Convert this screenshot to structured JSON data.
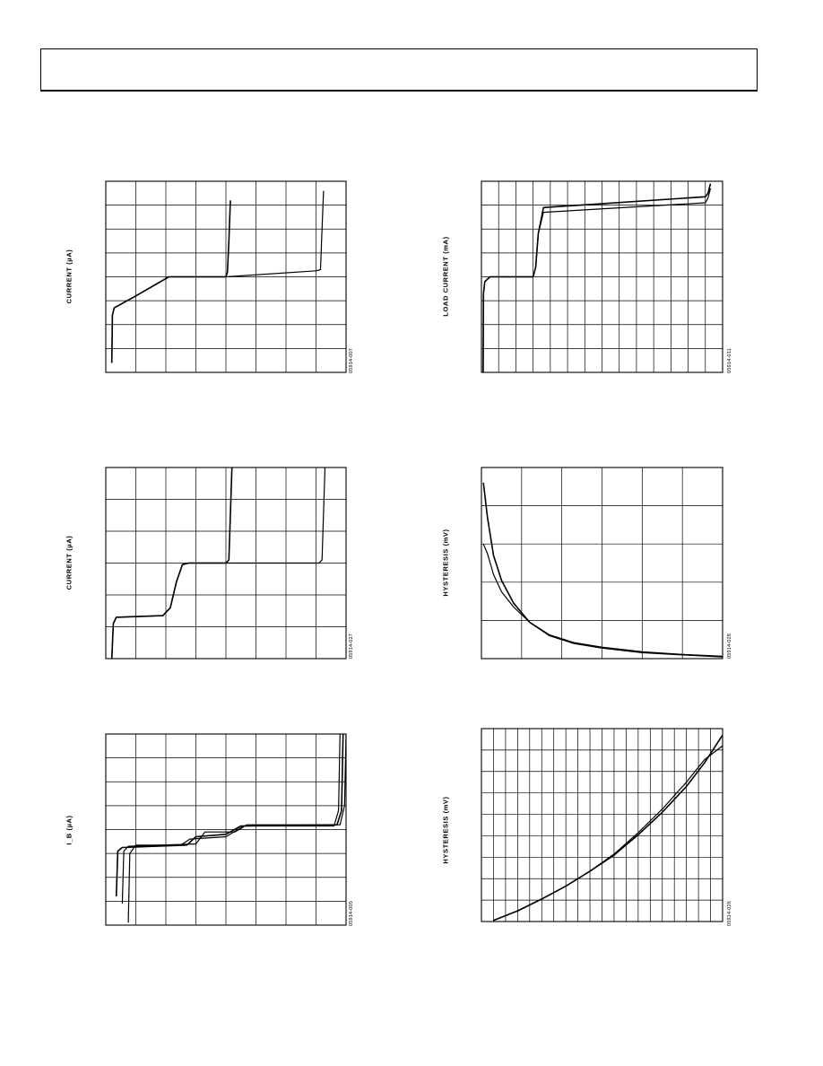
{
  "page": {
    "header_text": ""
  },
  "charts": [
    {
      "id": "tl",
      "figure_id": "05914-007",
      "chart_data": {
        "type": "line",
        "title": "",
        "xlabel": "",
        "ylabel": "CURRENT (µA)",
        "xlim": [
          0,
          8
        ],
        "ylim": [
          0,
          8
        ],
        "grid": {
          "x_divisions": 8,
          "y_divisions": 8
        },
        "series": [
          {
            "points": [
              [
                0.2,
                0.4
              ],
              [
                0.22,
                2.4
              ],
              [
                0.28,
                2.7
              ],
              [
                1.0,
                3.2
              ],
              [
                2.1,
                4.0
              ],
              [
                4.0,
                4.0
              ],
              [
                4.05,
                4.2
              ],
              [
                4.1,
                5.5
              ],
              [
                4.15,
                7.2
              ]
            ]
          },
          {
            "points": [
              [
                0.2,
                0.4
              ],
              [
                0.22,
                2.4
              ],
              [
                0.28,
                2.7
              ],
              [
                1.0,
                3.2
              ],
              [
                2.1,
                4.0
              ],
              [
                4.0,
                4.0
              ],
              [
                7.0,
                4.25
              ],
              [
                7.15,
                4.3
              ],
              [
                7.2,
                6.0
              ],
              [
                7.25,
                7.6
              ]
            ]
          }
        ]
      }
    },
    {
      "id": "tr",
      "figure_id": "05914-011",
      "chart_data": {
        "type": "line",
        "title": "",
        "xlabel": "",
        "ylabel": "LOAD CURRENT (mA)",
        "xlim": [
          0,
          14
        ],
        "ylim": [
          0,
          8
        ],
        "grid": {
          "x_divisions": 14,
          "y_divisions": 8
        },
        "series": [
          {
            "points": [
              [
                0.1,
                0
              ],
              [
                0.12,
                3.3
              ],
              [
                0.2,
                3.8
              ],
              [
                0.5,
                4.0
              ],
              [
                3.0,
                4.0
              ],
              [
                3.15,
                4.4
              ],
              [
                3.3,
                5.8
              ],
              [
                3.6,
                6.9
              ],
              [
                13.0,
                7.35
              ],
              [
                13.15,
                7.5
              ],
              [
                13.3,
                7.9
              ]
            ]
          },
          {
            "points": [
              [
                0.1,
                0
              ],
              [
                0.12,
                3.3
              ],
              [
                0.2,
                3.8
              ],
              [
                0.5,
                4.0
              ],
              [
                3.0,
                4.0
              ],
              [
                3.15,
                4.4
              ],
              [
                3.3,
                5.8
              ],
              [
                3.6,
                6.7
              ],
              [
                13.0,
                7.1
              ],
              [
                13.15,
                7.3
              ],
              [
                13.3,
                7.7
              ]
            ]
          }
        ]
      }
    },
    {
      "id": "ml",
      "figure_id": "05914-027",
      "chart_data": {
        "type": "line",
        "title": "",
        "xlabel": "",
        "ylabel": "CURRENT (µA)",
        "xlim": [
          0,
          8
        ],
        "ylim": [
          0,
          6
        ],
        "grid": {
          "x_divisions": 8,
          "y_divisions": 6
        },
        "series": [
          {
            "points": [
              [
                0.2,
                0
              ],
              [
                0.25,
                1.1
              ],
              [
                0.35,
                1.3
              ],
              [
                1.9,
                1.35
              ],
              [
                2.15,
                1.6
              ],
              [
                2.35,
                2.4
              ],
              [
                2.55,
                2.95
              ],
              [
                2.75,
                3.0
              ],
              [
                4.0,
                3.0
              ],
              [
                4.1,
                3.1
              ],
              [
                4.2,
                6.0
              ]
            ]
          },
          {
            "points": [
              [
                0.2,
                0
              ],
              [
                0.25,
                1.1
              ],
              [
                0.35,
                1.3
              ],
              [
                1.9,
                1.35
              ],
              [
                2.15,
                1.6
              ],
              [
                2.35,
                2.4
              ],
              [
                2.55,
                2.95
              ],
              [
                2.75,
                3.0
              ],
              [
                7.1,
                3.0
              ],
              [
                7.2,
                3.1
              ],
              [
                7.3,
                6.0
              ]
            ]
          }
        ]
      }
    },
    {
      "id": "mr",
      "figure_id": "05914-028",
      "chart_data": {
        "type": "line",
        "title": "",
        "xlabel": "",
        "ylabel": "HYSTERESIS (mV)",
        "xlim": [
          0,
          6
        ],
        "ylim": [
          0,
          5
        ],
        "grid": {
          "x_divisions": 6,
          "y_divisions": 5
        },
        "series": [
          {
            "points": [
              [
                0.05,
                4.6
              ],
              [
                0.15,
                3.7
              ],
              [
                0.3,
                2.7
              ],
              [
                0.5,
                2.05
              ],
              [
                0.8,
                1.45
              ],
              [
                1.2,
                0.95
              ],
              [
                1.7,
                0.6
              ],
              [
                2.3,
                0.4
              ],
              [
                3.0,
                0.28
              ],
              [
                4.0,
                0.16
              ],
              [
                5.0,
                0.1
              ],
              [
                6.0,
                0.05
              ]
            ]
          },
          {
            "points": [
              [
                0.05,
                3.0
              ],
              [
                0.15,
                2.75
              ],
              [
                0.3,
                2.2
              ],
              [
                0.5,
                1.75
              ],
              [
                0.8,
                1.35
              ],
              [
                1.2,
                0.95
              ],
              [
                1.7,
                0.62
              ],
              [
                2.3,
                0.42
              ],
              [
                3.0,
                0.3
              ],
              [
                4.0,
                0.18
              ],
              [
                5.0,
                0.11
              ],
              [
                6.0,
                0.06
              ]
            ]
          }
        ]
      }
    },
    {
      "id": "bl",
      "figure_id": "05914-005",
      "chart_data": {
        "type": "line",
        "title": "",
        "xlabel": "",
        "ylabel": "I_B (µA)",
        "xlim": [
          0,
          8
        ],
        "ylim": [
          0,
          8
        ],
        "grid": {
          "x_divisions": 8,
          "y_divisions": 8
        },
        "series": [
          {
            "points": [
              [
                0.35,
                1.2
              ],
              [
                0.4,
                3.1
              ],
              [
                0.55,
                3.25
              ],
              [
                2.7,
                3.35
              ],
              [
                3.0,
                3.7
              ],
              [
                4.0,
                3.8
              ],
              [
                4.5,
                4.15
              ],
              [
                7.7,
                4.2
              ],
              [
                7.85,
                4.8
              ],
              [
                7.9,
                8.0
              ]
            ]
          },
          {
            "points": [
              [
                0.55,
                0.9
              ],
              [
                0.6,
                3.1
              ],
              [
                0.75,
                3.3
              ],
              [
                3.0,
                3.4
              ],
              [
                3.3,
                3.9
              ],
              [
                4.3,
                3.9
              ],
              [
                4.7,
                4.2
              ],
              [
                7.8,
                4.2
              ],
              [
                7.95,
                5.0
              ],
              [
                8.0,
                8.0
              ]
            ]
          },
          {
            "points": [
              [
                0.75,
                0.1
              ],
              [
                0.8,
                3.0
              ],
              [
                1.0,
                3.35
              ],
              [
                2.5,
                3.35
              ],
              [
                2.8,
                3.6
              ],
              [
                4.0,
                3.7
              ],
              [
                4.6,
                4.15
              ],
              [
                7.6,
                4.15
              ],
              [
                7.75,
                4.8
              ],
              [
                7.8,
                8.0
              ]
            ]
          }
        ]
      }
    },
    {
      "id": "br",
      "figure_id": "05914-026",
      "chart_data": {
        "type": "line",
        "title": "",
        "xlabel": "",
        "ylabel": "HYSTERESIS (mV)",
        "xlim": [
          0,
          20
        ],
        "ylim": [
          0,
          9
        ],
        "grid": {
          "x_divisions": 20,
          "y_divisions": 9
        },
        "series": [
          {
            "points": [
              [
                1.0,
                0.05
              ],
              [
                3.0,
                0.5
              ],
              [
                5.0,
                1.05
              ],
              [
                7.0,
                1.65
              ],
              [
                9.0,
                2.35
              ],
              [
                11.0,
                3.1
              ],
              [
                13.0,
                4.05
              ],
              [
                15.0,
                5.1
              ],
              [
                17.0,
                6.3
              ],
              [
                18.5,
                7.4
              ],
              [
                20.0,
                8.7
              ]
            ]
          },
          {
            "points": [
              [
                1.0,
                0.05
              ],
              [
                3.0,
                0.5
              ],
              [
                5.0,
                1.05
              ],
              [
                7.0,
                1.65
              ],
              [
                9.0,
                2.35
              ],
              [
                11.0,
                3.15
              ],
              [
                13.0,
                4.15
              ],
              [
                15.0,
                5.25
              ],
              [
                17.0,
                6.5
              ],
              [
                18.5,
                7.55
              ],
              [
                20.0,
                8.2
              ]
            ]
          }
        ]
      }
    }
  ]
}
